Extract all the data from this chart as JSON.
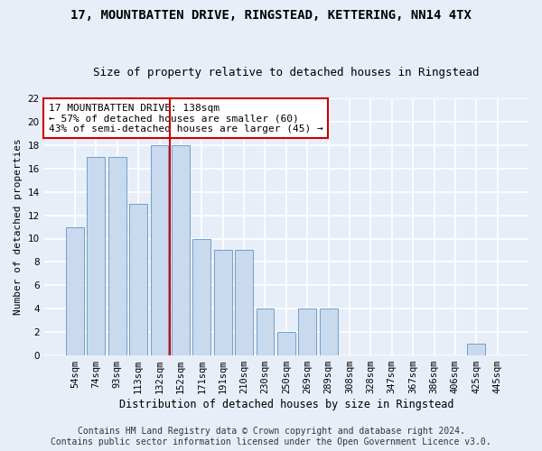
{
  "title": "17, MOUNTBATTEN DRIVE, RINGSTEAD, KETTERING, NN14 4TX",
  "subtitle": "Size of property relative to detached houses in Ringstead",
  "xlabel": "Distribution of detached houses by size in Ringstead",
  "ylabel": "Number of detached properties",
  "categories": [
    "54sqm",
    "74sqm",
    "93sqm",
    "113sqm",
    "132sqm",
    "152sqm",
    "171sqm",
    "191sqm",
    "210sqm",
    "230sqm",
    "250sqm",
    "269sqm",
    "289sqm",
    "308sqm",
    "328sqm",
    "347sqm",
    "367sqm",
    "386sqm",
    "406sqm",
    "425sqm",
    "445sqm"
  ],
  "values": [
    11,
    17,
    17,
    13,
    18,
    18,
    10,
    9,
    9,
    4,
    2,
    4,
    4,
    0,
    0,
    0,
    0,
    0,
    0,
    1,
    0
  ],
  "bar_color": "#c9d9ee",
  "bar_edge_color": "#6fa0cc",
  "reference_line_x": 4.5,
  "reference_line_color": "#cc0000",
  "ylim": [
    0,
    22
  ],
  "yticks": [
    0,
    2,
    4,
    6,
    8,
    10,
    12,
    14,
    16,
    18,
    20,
    22
  ],
  "annotation_text": "17 MOUNTBATTEN DRIVE: 138sqm\n← 57% of detached houses are smaller (60)\n43% of semi-detached houses are larger (45) →",
  "annotation_box_color": "#ffffff",
  "annotation_box_edge_color": "#cc0000",
  "footer_line1": "Contains HM Land Registry data © Crown copyright and database right 2024.",
  "footer_line2": "Contains public sector information licensed under the Open Government Licence v3.0.",
  "background_color": "#e8eef8",
  "plot_background_color": "#e8eef8",
  "grid_color": "#ffffff",
  "title_fontsize": 10,
  "subtitle_fontsize": 9,
  "xlabel_fontsize": 8.5,
  "ylabel_fontsize": 8,
  "tick_fontsize": 7.5,
  "footer_fontsize": 7,
  "annotation_fontsize": 8
}
